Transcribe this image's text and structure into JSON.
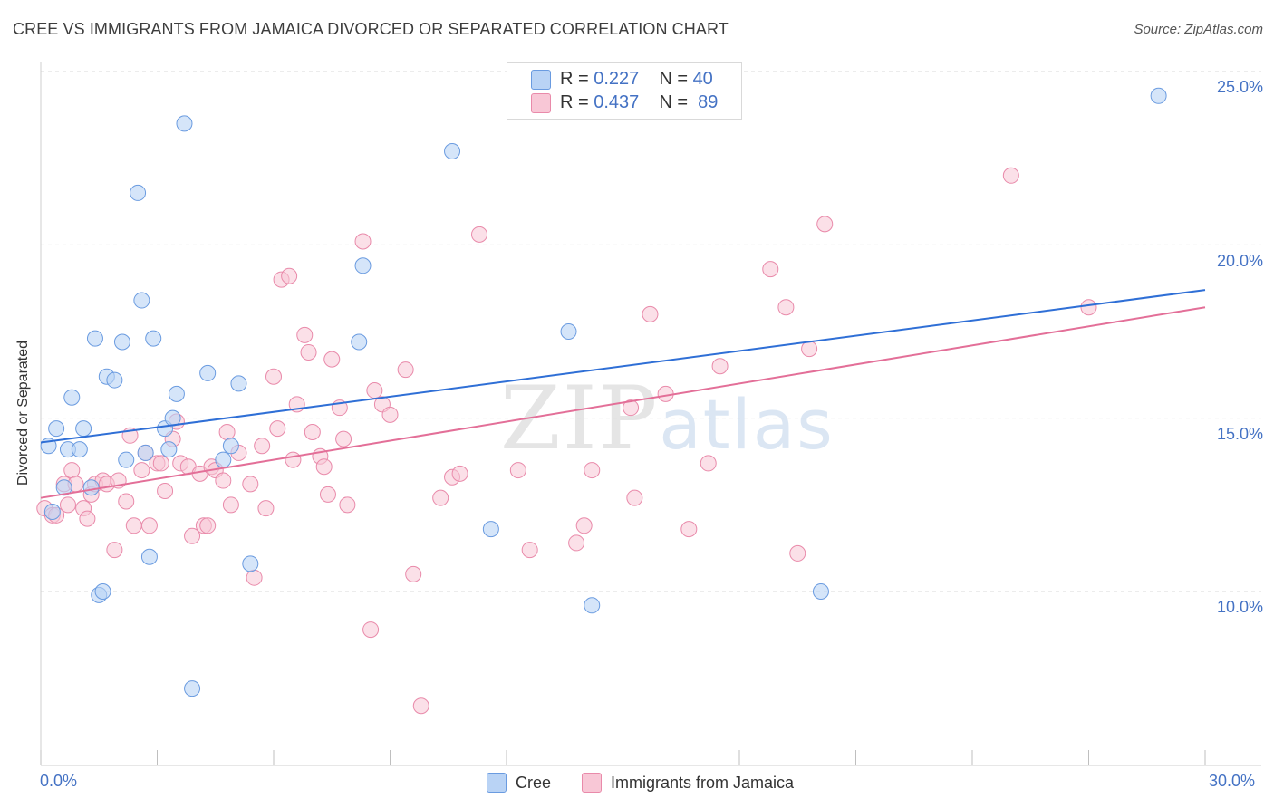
{
  "header": {
    "title": "CREE VS IMMIGRANTS FROM JAMAICA DIVORCED OR SEPARATED CORRELATION CHART",
    "source": "Source: ZipAtlas.com"
  },
  "watermark": {
    "zip": "ZIP",
    "atlas": "atlas"
  },
  "colors": {
    "cree_fill": "#b9d3f5",
    "cree_stroke": "#6a9be0",
    "cree_line": "#2f6fd6",
    "jam_fill": "#f8c7d6",
    "jam_stroke": "#e98aaa",
    "jam_line": "#e36f98",
    "tick_label": "#4472c4"
  },
  "legend": {
    "cree": {
      "r_label": "R =",
      "r_value": "0.227",
      "n_label": "N =",
      "n_value": "40"
    },
    "jamaica": {
      "r_label": "R =",
      "r_value": "0.437",
      "n_label": "N =",
      "n_value": "89"
    }
  },
  "chart_data": {
    "type": "scatter",
    "title": "CREE VS IMMIGRANTS FROM JAMAICA DIVORCED OR SEPARATED CORRELATION CHART",
    "xlabel": "",
    "ylabel": "Divorced or Separated",
    "xlim": [
      0,
      30
    ],
    "ylim": [
      5,
      26
    ],
    "x_tick_labels": {
      "min": "0.0%",
      "max": "30.0%"
    },
    "y_ticks": [
      {
        "value": 10,
        "label": "10.0%"
      },
      {
        "value": 15,
        "label": "15.0%"
      },
      {
        "value": 20,
        "label": "20.0%"
      },
      {
        "value": 25,
        "label": "25.0%"
      }
    ],
    "series": [
      {
        "name": "Cree",
        "r": 0.227,
        "n": 40,
        "trend": {
          "x0": 0,
          "y0": 14.3,
          "x1": 30,
          "y1": 18.7
        },
        "points": [
          [
            0.2,
            14.2
          ],
          [
            0.4,
            14.7
          ],
          [
            0.6,
            13.0
          ],
          [
            0.7,
            14.1
          ],
          [
            1.0,
            14.1
          ],
          [
            0.8,
            15.6
          ],
          [
            1.1,
            14.7
          ],
          [
            1.3,
            13.0
          ],
          [
            1.4,
            17.3
          ],
          [
            1.5,
            9.9
          ],
          [
            1.6,
            10.0
          ],
          [
            1.7,
            16.2
          ],
          [
            1.9,
            16.1
          ],
          [
            2.1,
            17.2
          ],
          [
            2.2,
            13.8
          ],
          [
            2.5,
            21.5
          ],
          [
            2.6,
            18.4
          ],
          [
            2.7,
            14.0
          ],
          [
            2.8,
            11.0
          ],
          [
            2.9,
            17.3
          ],
          [
            3.2,
            14.7
          ],
          [
            3.3,
            14.1
          ],
          [
            3.4,
            15.0
          ],
          [
            3.5,
            15.7
          ],
          [
            3.7,
            23.5
          ],
          [
            3.9,
            7.2
          ],
          [
            4.3,
            16.3
          ],
          [
            4.7,
            13.8
          ],
          [
            4.9,
            14.2
          ],
          [
            5.1,
            16.0
          ],
          [
            5.4,
            10.8
          ],
          [
            8.2,
            17.2
          ],
          [
            8.3,
            19.4
          ],
          [
            10.6,
            22.7
          ],
          [
            11.6,
            11.8
          ],
          [
            13.6,
            17.5
          ],
          [
            14.2,
            9.6
          ],
          [
            20.1,
            10.0
          ],
          [
            28.8,
            24.3
          ],
          [
            0.3,
            12.3
          ]
        ]
      },
      {
        "name": "Immigrants from Jamaica",
        "r": 0.437,
        "n": 89,
        "trend": {
          "x0": 0,
          "y0": 12.7,
          "x1": 30,
          "y1": 18.2
        },
        "points": [
          [
            0.1,
            12.4
          ],
          [
            0.3,
            12.2
          ],
          [
            0.4,
            12.2
          ],
          [
            0.6,
            13.1
          ],
          [
            0.7,
            12.5
          ],
          [
            0.8,
            13.5
          ],
          [
            0.9,
            13.1
          ],
          [
            1.1,
            12.4
          ],
          [
            1.2,
            12.1
          ],
          [
            1.3,
            12.8
          ],
          [
            1.4,
            13.1
          ],
          [
            1.6,
            13.2
          ],
          [
            1.7,
            13.1
          ],
          [
            1.9,
            11.2
          ],
          [
            2.0,
            13.2
          ],
          [
            2.2,
            12.6
          ],
          [
            2.3,
            14.5
          ],
          [
            2.4,
            11.9
          ],
          [
            2.6,
            13.5
          ],
          [
            2.7,
            14.0
          ],
          [
            2.8,
            11.9
          ],
          [
            3.0,
            13.7
          ],
          [
            3.1,
            13.7
          ],
          [
            3.2,
            12.9
          ],
          [
            3.4,
            14.4
          ],
          [
            3.5,
            14.9
          ],
          [
            3.6,
            13.7
          ],
          [
            3.8,
            13.6
          ],
          [
            3.9,
            11.6
          ],
          [
            4.1,
            13.4
          ],
          [
            4.2,
            11.9
          ],
          [
            4.3,
            11.9
          ],
          [
            4.4,
            13.6
          ],
          [
            4.5,
            13.5
          ],
          [
            4.7,
            13.2
          ],
          [
            4.8,
            14.6
          ],
          [
            4.9,
            12.5
          ],
          [
            5.1,
            14.0
          ],
          [
            5.4,
            13.1
          ],
          [
            5.5,
            10.4
          ],
          [
            5.7,
            14.2
          ],
          [
            5.8,
            12.4
          ],
          [
            6.0,
            16.2
          ],
          [
            6.1,
            14.7
          ],
          [
            6.2,
            19.0
          ],
          [
            6.4,
            19.1
          ],
          [
            6.5,
            13.8
          ],
          [
            6.6,
            15.4
          ],
          [
            6.8,
            17.4
          ],
          [
            6.9,
            16.9
          ],
          [
            7.0,
            14.6
          ],
          [
            7.2,
            13.9
          ],
          [
            7.3,
            13.6
          ],
          [
            7.4,
            12.8
          ],
          [
            7.5,
            16.7
          ],
          [
            7.7,
            15.3
          ],
          [
            7.8,
            14.4
          ],
          [
            7.9,
            12.5
          ],
          [
            8.3,
            20.1
          ],
          [
            8.5,
            8.9
          ],
          [
            8.6,
            15.8
          ],
          [
            8.8,
            15.4
          ],
          [
            9.0,
            15.1
          ],
          [
            9.4,
            16.4
          ],
          [
            9.6,
            10.5
          ],
          [
            9.8,
            6.7
          ],
          [
            10.3,
            12.7
          ],
          [
            10.6,
            13.3
          ],
          [
            10.8,
            13.4
          ],
          [
            11.3,
            20.3
          ],
          [
            12.3,
            13.5
          ],
          [
            12.6,
            11.2
          ],
          [
            13.8,
            11.4
          ],
          [
            14.0,
            11.9
          ],
          [
            14.2,
            13.5
          ],
          [
            15.2,
            15.3
          ],
          [
            15.3,
            12.7
          ],
          [
            15.7,
            18.0
          ],
          [
            16.1,
            15.7
          ],
          [
            16.7,
            11.8
          ],
          [
            17.2,
            13.7
          ],
          [
            17.5,
            16.5
          ],
          [
            18.8,
            19.3
          ],
          [
            19.2,
            18.2
          ],
          [
            19.5,
            11.1
          ],
          [
            19.8,
            17.0
          ],
          [
            20.2,
            20.6
          ],
          [
            25.0,
            22.0
          ],
          [
            27.0,
            18.2
          ]
        ]
      }
    ]
  },
  "bottom_legend": {
    "cree": "Cree",
    "jamaica": "Immigrants from Jamaica"
  }
}
